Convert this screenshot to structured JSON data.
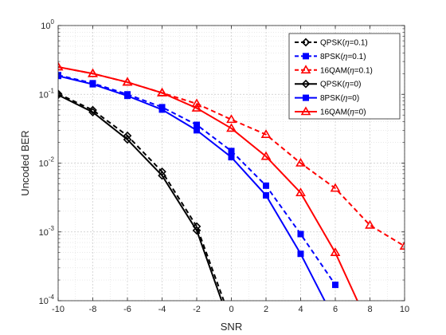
{
  "chart_data": {
    "type": "line",
    "xlabel": "SNR",
    "ylabel": "Uncoded BER",
    "xlim": [
      -10,
      10
    ],
    "ylim": [
      0.0001,
      1
    ],
    "y_scale": "log",
    "grid": true,
    "minor_grid": true,
    "legend_position": "top-right",
    "x_ticks": [
      -10,
      -8,
      -6,
      -4,
      -2,
      0,
      2,
      4,
      6,
      8,
      10
    ],
    "y_ticks": [
      {
        "value": 0.0001,
        "base": "10",
        "exp": "-4"
      },
      {
        "value": 0.001,
        "base": "10",
        "exp": "-3"
      },
      {
        "value": 0.01,
        "base": "10",
        "exp": "-2"
      },
      {
        "value": 0.1,
        "base": "10",
        "exp": "-1"
      },
      {
        "value": 1,
        "base": "10",
        "exp": "0"
      }
    ],
    "series": [
      {
        "label_pre": "QPSK(",
        "label_eta": "η",
        "label_post": "=0.1)",
        "color": "#000000",
        "dash": "dashed",
        "marker": "diamond",
        "x": [
          -10,
          -8,
          -6,
          -4,
          -2,
          0
        ],
        "y": [
          0.102,
          0.059,
          0.025,
          0.0075,
          0.0012,
          5e-05
        ]
      },
      {
        "label_pre": "8PSK(",
        "label_eta": "η",
        "label_post": "=0.1)",
        "color": "#0000ff",
        "dash": "dashed",
        "marker": "square",
        "x": [
          -10,
          -8,
          -6,
          -4,
          -2,
          0,
          2,
          4,
          6
        ],
        "y": [
          0.19,
          0.145,
          0.1,
          0.065,
          0.036,
          0.015,
          0.0047,
          0.00093,
          0.00017
        ]
      },
      {
        "label_pre": "16QAM(",
        "label_eta": "η",
        "label_post": "=0.1)",
        "color": "#ff0000",
        "dash": "dashed",
        "marker": "triangle",
        "x": [
          -10,
          -8,
          -6,
          -4,
          -2,
          0,
          2,
          4,
          6,
          8,
          10
        ],
        "y": [
          0.25,
          0.2,
          0.15,
          0.105,
          0.073,
          0.043,
          0.026,
          0.01,
          0.0043,
          0.00125,
          0.00062
        ]
      },
      {
        "label_pre": "QPSK(",
        "label_eta": "η",
        "label_post": "=0)",
        "color": "#000000",
        "dash": "solid",
        "marker": "diamond",
        "x": [
          -10,
          -8,
          -6,
          -4,
          -2,
          0
        ],
        "y": [
          0.098,
          0.055,
          0.022,
          0.0066,
          0.00105,
          4e-05
        ]
      },
      {
        "label_pre": "8PSK(",
        "label_eta": "η",
        "label_post": "=0)",
        "color": "#0000ff",
        "dash": "solid",
        "marker": "square",
        "x": [
          -10,
          -8,
          -6,
          -4,
          -2,
          0,
          2,
          4,
          6
        ],
        "y": [
          0.185,
          0.14,
          0.095,
          0.06,
          0.03,
          0.0122,
          0.0034,
          0.00048,
          5e-05
        ]
      },
      {
        "label_pre": "16QAM(",
        "label_eta": "η",
        "label_post": "=0)",
        "color": "#ff0000",
        "dash": "solid",
        "marker": "triangle",
        "x": [
          -10,
          -8,
          -6,
          -4,
          -2,
          0,
          2,
          4,
          6,
          8
        ],
        "y": [
          0.25,
          0.2,
          0.15,
          0.105,
          0.063,
          0.032,
          0.0125,
          0.0037,
          0.0005,
          4e-05
        ]
      }
    ]
  }
}
